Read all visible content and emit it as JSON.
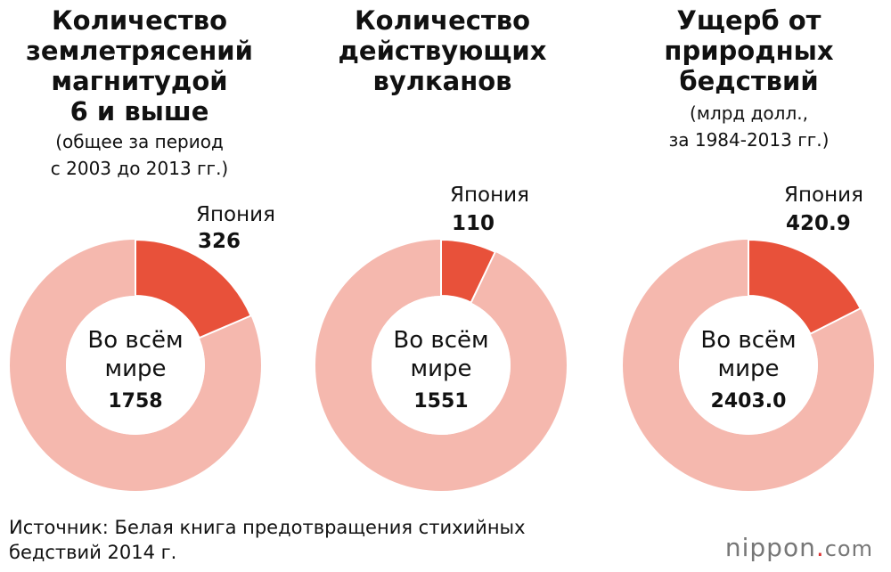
{
  "colors": {
    "japan": "#e8513a",
    "world": "#f5b8ae",
    "hole": "#ffffff"
  },
  "panels": [
    {
      "title_lines": [
        "Количество",
        "землетрясений",
        "магнитудой",
        "6 и выше"
      ],
      "subtitle_lines": [
        "(общее за период",
        "с 2003 до 2013 гг.)"
      ],
      "japan_label": "Япония",
      "japan_value_text": "326",
      "center_lines": [
        "Во всём",
        "мире"
      ],
      "world_value_text": "1758"
    },
    {
      "title_lines": [
        "Количество",
        "действующих",
        "вулканов"
      ],
      "subtitle_lines": [],
      "japan_label": "Япония",
      "japan_value_text": "110",
      "center_lines": [
        "Во всём",
        "мире"
      ],
      "world_value_text": "1551"
    },
    {
      "title_lines": [
        "Ущерб от",
        "природных",
        "бедствий"
      ],
      "subtitle_lines": [
        "(млрд долл.,",
        "за 1984-2013 гг.)"
      ],
      "japan_label": "Япония",
      "japan_value_text": "420.9",
      "center_lines": [
        "Во всём",
        "мире"
      ],
      "world_value_text": "2403.0"
    }
  ],
  "chart_data": [
    {
      "type": "pie",
      "title": "Количество землетрясений магнитудой 6 и выше",
      "subtitle": "(общее за период с 2003 до 2013 гг.)",
      "labels": [
        "Япония",
        "Во всём мире"
      ],
      "values": [
        326,
        1758
      ],
      "total": 1758
    },
    {
      "type": "pie",
      "title": "Количество действующих вулканов",
      "subtitle": "",
      "labels": [
        "Япония",
        "Во всём мире"
      ],
      "values": [
        110,
        1551
      ],
      "total": 1551
    },
    {
      "type": "pie",
      "title": "Ущерб от природных бедствий",
      "subtitle": "(млрд долл., за 1984-2013 гг.)",
      "labels": [
        "Япония",
        "Во всём мире"
      ],
      "values": [
        420.9,
        2403.0
      ],
      "total": 2403.0
    }
  ],
  "source": {
    "line1": "Источник: Белая книга предотвращения стихийных",
    "line2": "бедствий 2014 г."
  },
  "logo": {
    "main": "nippon",
    "dot": ".",
    "suffix": "com"
  }
}
